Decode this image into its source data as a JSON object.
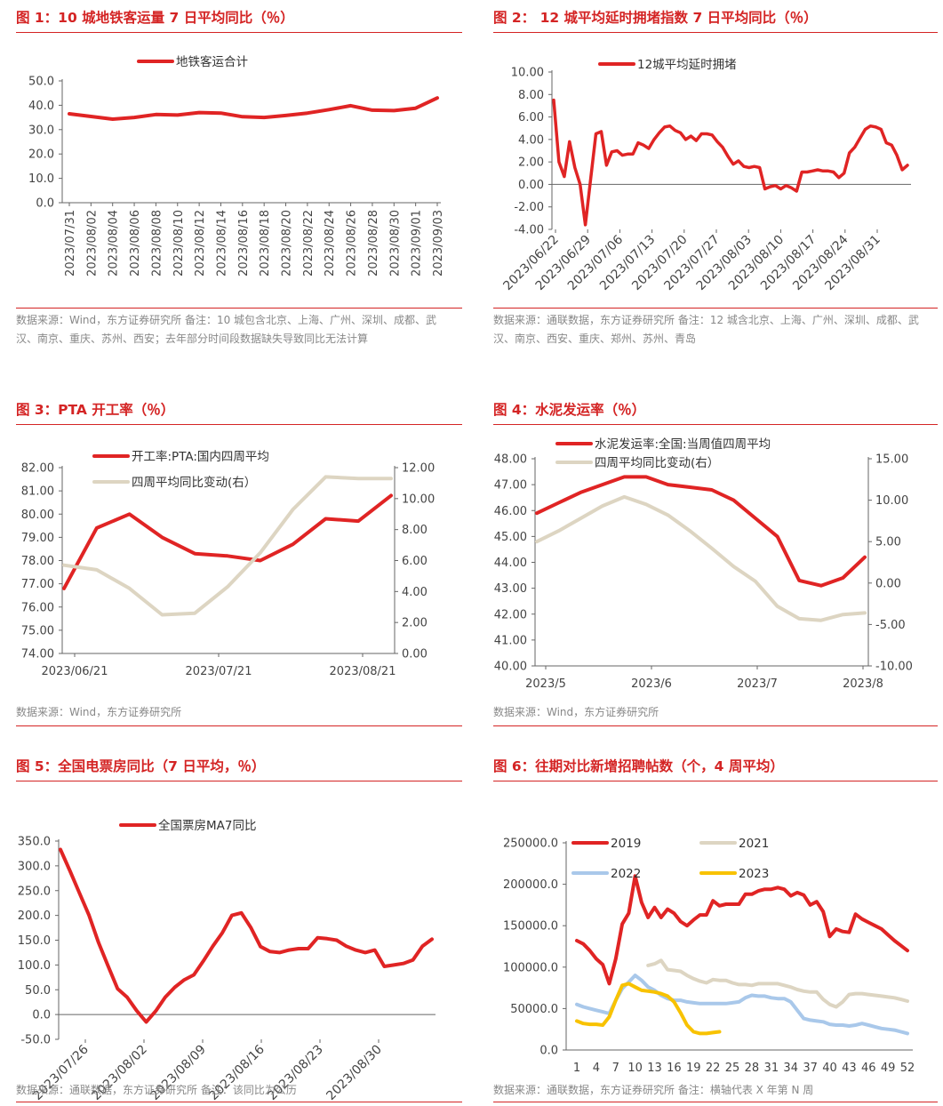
{
  "charts": [
    {
      "title": "图 1：10 城地铁客运量 7 日平均同比（％）",
      "source": "数据来源：Wind，东方证券研究所 备注：10 城包含北京、上海、广州、深圳、成都、武汉、南京、重庆、苏州、西安；去年部分时间段数据缺失导致同比无法计算",
      "chart_data": {
        "type": "line",
        "x": [
          "2023/07/31",
          "2023/08/02",
          "2023/08/04",
          "2023/08/06",
          "2023/08/08",
          "2023/08/10",
          "2023/08/12",
          "2023/08/14",
          "2023/08/16",
          "2023/08/18",
          "2023/08/20",
          "2023/08/22",
          "2023/08/24",
          "2023/08/26",
          "2023/08/28",
          "2023/08/30",
          "2023/09/01",
          "2023/09/03"
        ],
        "series": [
          {
            "name": "地铁客运合计",
            "color": "#e02424",
            "axis": "left",
            "values": [
              36.5,
              35.4,
              34.3,
              35.0,
              36.2,
              36.0,
              37.0,
              36.8,
              35.3,
              35.0,
              35.8,
              36.8,
              38.2,
              39.8,
              38.0,
              37.8,
              38.8,
              43.0
            ]
          }
        ],
        "ylim": [
          0,
          50
        ],
        "yticks": [
          "0.0",
          "10.0",
          "20.0",
          "30.0",
          "40.0",
          "50.0"
        ],
        "grid": false,
        "legend": "top-center"
      }
    },
    {
      "title": "图 2： 12 城平均延时拥堵指数 7 日平均同比（％）",
      "source": "数据来源：通联数据，东方证券研究所 备注：12 城含北京、上海、广州、深圳、成都、武汉、南京、西安、重庆、郑州、苏州、青岛",
      "chart_data": {
        "type": "line",
        "x_tick_labels": [
          "2023/06/22",
          "2023/06/29",
          "2023/07/06",
          "2023/07/13",
          "2023/07/20",
          "2023/07/27",
          "2023/08/03",
          "2023/08/10",
          "2023/08/17",
          "2023/08/24",
          "2023/08/31"
        ],
        "series": [
          {
            "name": "12城平均延时拥堵",
            "color": "#e02424",
            "axis": "left",
            "values": [
              7.5,
              2.0,
              0.7,
              3.8,
              1.5,
              0.0,
              -3.6,
              0.5,
              4.5,
              4.7,
              1.7,
              2.9,
              3.0,
              2.6,
              2.7,
              2.7,
              3.7,
              3.5,
              3.2,
              4.0,
              4.6,
              5.1,
              5.2,
              4.8,
              4.6,
              4.0,
              4.3,
              3.9,
              4.5,
              4.5,
              4.4,
              3.8,
              3.3,
              2.5,
              1.8,
              2.1,
              1.6,
              1.5,
              1.6,
              1.5,
              -0.4,
              -0.2,
              -0.1,
              -0.4,
              -0.1,
              -0.3,
              -0.6,
              1.1,
              1.1,
              1.2,
              1.3,
              1.2,
              1.2,
              1.1,
              0.6,
              1.0,
              2.8,
              3.3,
              4.1,
              4.9,
              5.2,
              5.1,
              4.9,
              3.7,
              3.5,
              2.6,
              1.3,
              1.7
            ]
          }
        ],
        "ylim": [
          -4,
          10
        ],
        "yticks": [
          "-4.00",
          "-2.00",
          "0.00",
          "2.00",
          "4.00",
          "6.00",
          "8.00",
          "10.00"
        ],
        "grid": false,
        "legend": "top-center"
      }
    },
    {
      "title": "图 3：PTA 开工率（％）",
      "source": "数据来源：Wind，东方证券研究所",
      "chart_data": {
        "type": "line",
        "x_tick_labels": [
          "2023/06/21",
          "2023/07/21",
          "2023/08/21"
        ],
        "series": [
          {
            "name": "开工率:PTA:国内四周平均",
            "color": "#e02424",
            "axis": "left",
            "values": [
              76.8,
              79.4,
              80.0,
              79.0,
              78.3,
              78.2,
              78.0,
              78.7,
              79.8,
              79.7,
              80.8
            ]
          },
          {
            "name": "四周平均同比变动(右）",
            "color": "#ddd5c2",
            "axis": "right",
            "values": [
              5.7,
              5.4,
              4.2,
              2.5,
              2.6,
              4.3,
              6.5,
              9.3,
              11.4,
              11.3,
              11.3
            ]
          }
        ],
        "ylim_left": [
          74,
          82
        ],
        "ylim_right": [
          0,
          12
        ],
        "yticks_left": [
          "74.00",
          "75.00",
          "76.00",
          "77.00",
          "78.00",
          "79.00",
          "80.00",
          "81.00",
          "82.00"
        ],
        "yticks_right": [
          "0.00",
          "2.00",
          "4.00",
          "6.00",
          "8.00",
          "10.00",
          "12.00"
        ],
        "grid": false,
        "legend": "top-center"
      }
    },
    {
      "title": "图 4：水泥发运率（％）",
      "source": "数据来源：Wind，东方证券研究所",
      "chart_data": {
        "type": "line",
        "x_tick_labels": [
          "2023/5",
          "2023/6",
          "2023/7",
          "2023/8"
        ],
        "series": [
          {
            "name": "水泥发运率:全国:当周值四周平均",
            "color": "#e02424",
            "axis": "left",
            "values": [
              45.9,
              46.3,
              46.7,
              47.0,
              47.3,
              47.3,
              47.0,
              46.9,
              46.8,
              46.4,
              45.7,
              45.0,
              43.3,
              43.1,
              43.4,
              44.2
            ]
          },
          {
            "name": "四周平均同比变动(右）",
            "color": "#ddd5c2",
            "axis": "right",
            "values": [
              5.0,
              6.3,
              7.8,
              9.3,
              10.4,
              9.5,
              8.2,
              6.3,
              4.2,
              2.0,
              0.2,
              -2.8,
              -4.3,
              -4.5,
              -3.8,
              -3.6
            ]
          }
        ],
        "ylim_left": [
          40,
          48
        ],
        "ylim_right": [
          -10,
          15
        ],
        "yticks_left": [
          "40.00",
          "41.00",
          "42.00",
          "43.00",
          "44.00",
          "45.00",
          "46.00",
          "47.00",
          "48.00"
        ],
        "yticks_right": [
          "-10.00",
          "-5.00",
          "0.00",
          "5.00",
          "10.00",
          "15.00"
        ],
        "grid": false,
        "legend": "top-center"
      }
    },
    {
      "title": "图 5：全国电票房同比（7 日平均，％）",
      "source": "数据来源：通联数据，东方证券研究所 备注：该同比为公历",
      "chart_data": {
        "type": "line",
        "x_tick_labels": [
          "2023/07/26",
          "2023/08/02",
          "2023/08/09",
          "2023/08/16",
          "2023/08/23",
          "2023/08/30"
        ],
        "series": [
          {
            "name": "全国票房MA7同比",
            "color": "#e02424",
            "axis": "left",
            "values": [
              333,
              290,
              245,
              200,
              145,
              98,
              52,
              35,
              8,
              -15,
              7,
              35,
              55,
              70,
              80,
              108,
              138,
              165,
              200,
              205,
              175,
              137,
              127,
              125,
              130,
              133,
              133,
              155,
              153,
              150,
              138,
              130,
              125,
              130,
              97,
              100,
              103,
              110,
              138,
              152
            ]
          }
        ],
        "ylim": [
          -50,
          350
        ],
        "yticks": [
          "-50.0",
          "0.0",
          "50.0",
          "100.0",
          "150.0",
          "200.0",
          "250.0",
          "300.0",
          "350.0"
        ],
        "grid": false,
        "legend": "top-center"
      }
    },
    {
      "title": "图 6：往期对比新增招聘帖数（个，4 周平均）",
      "source": "数据来源：通联数据，东方证券研究所 备注：横轴代表 X 年第 N 周",
      "chart_data": {
        "type": "line",
        "x_tick_labels": [
          "1",
          "4",
          "7",
          "10",
          "13",
          "16",
          "19",
          "22",
          "25",
          "28",
          "31",
          "34",
          "37",
          "40",
          "43",
          "46",
          "49",
          "52"
        ],
        "xlim": [
          1,
          52
        ],
        "series": [
          {
            "name": "2019",
            "color": "#e02424",
            "axis": "left",
            "values": [
              132000,
              128000,
              120000,
              110000,
              103000,
              80000,
              110000,
              152000,
              165000,
              210000,
              178000,
              160000,
              172000,
              160000,
              170000,
              165000,
              155000,
              150000,
              157000,
              163000,
              163000,
              180000,
              174000,
              176000,
              176000,
              176000,
              188000,
              188000,
              192000,
              194000,
              194000,
              196000,
              194000,
              186000,
              190000,
              187000,
              175000,
              179000,
              167000,
              137000,
              146000,
              143000,
              142000,
              164000,
              158000,
              154000,
              150000,
              146000,
              139000,
              132000,
              126000,
              120000
            ]
          },
          {
            "name": "2021",
            "color": "#ddd5c2",
            "axis": "left",
            "values": [
              null,
              null,
              null,
              null,
              null,
              null,
              null,
              null,
              null,
              null,
              null,
              102000,
              104000,
              108000,
              97000,
              96000,
              95000,
              90000,
              86000,
              83000,
              81000,
              85000,
              84000,
              84000,
              81000,
              79000,
              79000,
              78000,
              80000,
              80000,
              80000,
              80000,
              78000,
              76000,
              73000,
              71000,
              70000,
              70000,
              61000,
              55000,
              52000,
              58000,
              67000,
              68000,
              68000,
              67000,
              66000,
              65000,
              64000,
              63000,
              61000,
              59000
            ]
          },
          {
            "name": "2022",
            "color": "#a9c8ea",
            "axis": "left",
            "values": [
              55000,
              52000,
              50000,
              48000,
              46000,
              44000,
              60000,
              74000,
              82000,
              90000,
              84000,
              76000,
              72000,
              66000,
              62000,
              60000,
              60000,
              58000,
              57000,
              56000,
              56000,
              56000,
              56000,
              56000,
              57000,
              58000,
              63000,
              66000,
              65000,
              65000,
              63000,
              62000,
              62000,
              58000,
              48000,
              38000,
              36000,
              35000,
              34000,
              31000,
              30000,
              30000,
              29000,
              30000,
              32000,
              30000,
              28000,
              26000,
              25000,
              24000,
              22000,
              20000
            ]
          },
          {
            "name": "2023",
            "color": "#f8c200",
            "axis": "left",
            "values": [
              35000,
              32000,
              31000,
              31000,
              30000,
              40000,
              60000,
              78000,
              80000,
              76000,
              72000,
              71000,
              70000,
              68000,
              65000,
              58000,
              45000,
              30000,
              22000,
              20000,
              20000,
              21000,
              22000,
              null,
              null,
              null,
              null,
              null,
              null,
              null,
              null,
              null,
              null,
              null,
              null,
              null,
              null,
              null,
              null,
              null,
              null,
              null,
              null,
              null,
              null,
              null,
              null,
              null,
              null,
              null,
              null,
              null
            ]
          }
        ],
        "ylim": [
          0,
          250000
        ],
        "yticks": [
          "0.0",
          "50000.0",
          "100000.0",
          "150000.0",
          "200000.0",
          "250000.0"
        ],
        "grid": false,
        "legend": "top-center"
      }
    }
  ]
}
